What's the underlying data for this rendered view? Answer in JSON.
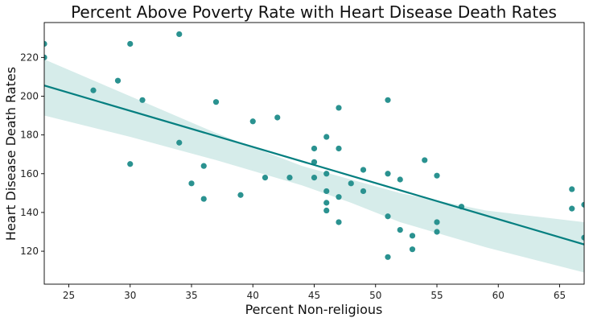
{
  "chart_data": {
    "type": "scatter",
    "title": "Percent Above Poverty Rate with Heart Disease Death Rates",
    "xlabel": "Percent Non-religious",
    "ylabel": "Heart Disease Death Rates",
    "xlim": [
      23,
      67
    ],
    "ylim": [
      103,
      238
    ],
    "xticks": [
      25,
      30,
      35,
      40,
      45,
      50,
      55,
      60,
      65
    ],
    "yticks": [
      120,
      140,
      160,
      180,
      200,
      220
    ],
    "grid": false,
    "legend": "none",
    "points": [
      [
        23,
        227
      ],
      [
        23,
        220
      ],
      [
        27,
        203
      ],
      [
        29,
        208
      ],
      [
        30,
        227
      ],
      [
        31,
        198
      ],
      [
        30,
        165
      ],
      [
        34,
        232
      ],
      [
        34,
        176
      ],
      [
        35,
        155
      ],
      [
        36,
        147
      ],
      [
        36,
        164
      ],
      [
        37,
        197
      ],
      [
        39,
        149
      ],
      [
        40,
        187
      ],
      [
        41,
        158
      ],
      [
        42,
        189
      ],
      [
        43,
        158
      ],
      [
        45,
        173
      ],
      [
        45,
        166
      ],
      [
        45,
        158
      ],
      [
        46,
        179
      ],
      [
        46,
        160
      ],
      [
        46,
        151
      ],
      [
        46,
        145
      ],
      [
        46,
        141
      ],
      [
        47,
        194
      ],
      [
        47,
        173
      ],
      [
        47,
        148
      ],
      [
        47,
        135
      ],
      [
        48,
        155
      ],
      [
        49,
        162
      ],
      [
        49,
        151
      ],
      [
        51,
        198
      ],
      [
        51,
        160
      ],
      [
        51,
        138
      ],
      [
        51,
        117
      ],
      [
        52,
        157
      ],
      [
        52,
        131
      ],
      [
        53,
        128
      ],
      [
        53,
        121
      ],
      [
        54,
        167
      ],
      [
        55,
        159
      ],
      [
        55,
        135
      ],
      [
        55,
        130
      ],
      [
        57,
        143
      ],
      [
        66,
        152
      ],
      [
        66,
        142
      ],
      [
        67,
        144
      ],
      [
        67,
        127
      ]
    ],
    "regression": {
      "x": [
        23,
        67
      ],
      "y": [
        205.5,
        123.5
      ]
    },
    "confidence_band": {
      "x": [
        23,
        30,
        37,
        44,
        48,
        52,
        59,
        67
      ],
      "upper": [
        219,
        200,
        181,
        164,
        157,
        150,
        141,
        135
      ],
      "lower": [
        190,
        179,
        167,
        154,
        145,
        135,
        122,
        109
      ]
    },
    "colors": {
      "points": "#2a9290",
      "line": "#057f80",
      "band": "#d6ecea"
    }
  }
}
